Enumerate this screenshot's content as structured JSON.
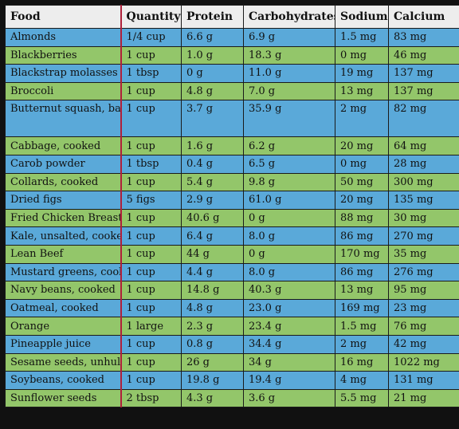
{
  "table": {
    "headers": [
      "Food",
      "Quantity",
      "Protein",
      "Carbohydrates",
      "Sodium",
      "Calcium"
    ],
    "rows": [
      {
        "food": "Almonds",
        "quantity": "1/4 cup",
        "protein": "6.6 g",
        "carbohydrates": "6.9 g",
        "sodium": "1.5 mg",
        "calcium": "83 mg",
        "color": "blue"
      },
      {
        "food": "Blackberries",
        "quantity": "1 cup",
        "protein": "1.0 g",
        "carbohydrates": "18.3 g",
        "sodium": "0 mg",
        "calcium": "46 mg",
        "color": "green"
      },
      {
        "food": "Blackstrap molasses",
        "quantity": "1 tbsp",
        "protein": "0 g",
        "carbohydrates": "11.0 g",
        "sodium": "19 mg",
        "calcium": "137 mg",
        "color": "blue"
      },
      {
        "food": "Broccoli",
        "quantity": "1 cup",
        "protein": "4.8 g",
        "carbohydrates": "7.0 g",
        "sodium": " 13 mg",
        "calcium": "137 mg",
        "color": "green"
      },
      {
        "food": "Butternut squash, baked",
        "quantity": "1 cup",
        "protein": "3.7 g",
        "carbohydrates": "35.9 g",
        "sodium": "2 mg",
        "calcium": "82 mg",
        "color": "blue",
        "tall": true
      },
      {
        "food": "Cabbage, cooked",
        "quantity": "1 cup",
        "protein": "1.6 g",
        "carbohydrates": "6.2 g",
        "sodium": "20 mg",
        "calcium": "64 mg",
        "color": "green"
      },
      {
        "food": "Carob powder",
        "quantity": "1 tbsp",
        "protein": "0.4 g",
        "carbohydrates": "6.5 g",
        "sodium": "0 mg",
        "calcium": "28 mg",
        "color": "blue"
      },
      {
        "food": "Collards, cooked",
        "quantity": "1 cup",
        "protein": "5.4 g",
        "carbohydrates": "9.8 g",
        "sodium": "50 mg",
        "calcium": "300 mg",
        "color": "green"
      },
      {
        "food": "Dried figs",
        "quantity": "5 figs",
        "protein": "2.9 g",
        "carbohydrates": "61.0 g",
        "sodium": "20 mg",
        "calcium": "135 mg",
        "color": "blue"
      },
      {
        "food": "Fried Chicken Breast",
        "quantity": "1 cup",
        "protein": "40.6 g",
        "carbohydrates": "0 g",
        "sodium": "88 mg",
        "calcium": "30 mg",
        "color": "green"
      },
      {
        "food": "Kale, unsalted, cooked",
        "quantity": "1 cup",
        "protein": "6.4 g",
        "carbohydrates": "8.0 g",
        "sodium": "86 mg",
        "calcium": "270 mg",
        "color": "blue"
      },
      {
        "food": "Lean Beef",
        "quantity": "1 cup",
        "protein": "44 g",
        "carbohydrates": "0 g",
        "sodium": "170  mg",
        "calcium": "35 mg",
        "color": "green"
      },
      {
        "food": "Mustard greens, cooked",
        "quantity": "1 cup",
        "protein": "4.4 g",
        "carbohydrates": "8.0 g",
        "sodium": "86 mg",
        "calcium": "276 mg",
        "color": "blue"
      },
      {
        "food": "Navy beans, cooked",
        "quantity": "1 cup",
        "protein": "14.8 g",
        "carbohydrates": "40.3 g",
        "sodium": "13 mg",
        "calcium": "95 mg",
        "color": "green"
      },
      {
        "food": "Oatmeal, cooked",
        "quantity": "1 cup",
        "protein": "4.8 g",
        "carbohydrates": "23.0 g",
        "sodium": "169 mg",
        "calcium": "23 mg",
        "color": "blue"
      },
      {
        "food": "Orange",
        "quantity": "1 large",
        "protein": "2.3 g",
        "carbohydrates": "23.4 g",
        "sodium": "1.5 mg",
        "calcium": "76 mg",
        "color": "green"
      },
      {
        "food": "Pineapple juice",
        "quantity": "1 cup",
        "protein": "0.8 g",
        "carbohydrates": "34.4 g",
        "sodium": "2 mg",
        "calcium": "42 mg",
        "color": "blue"
      },
      {
        "food": "Sesame seeds, unhulled",
        "quantity": "1 cup",
        "protein": "26 g",
        "carbohydrates": "34 g",
        "sodium": "16 mg",
        "calcium": "1022 mg",
        "color": "green"
      },
      {
        "food": "Soybeans, cooked",
        "quantity": "1 cup",
        "protein": "19.8 g",
        "carbohydrates": "19.4 g",
        "sodium": "4 mg",
        "calcium": "131 mg",
        "color": "blue"
      },
      {
        "food": "Sunflower seeds",
        "quantity": "2 tbsp",
        "protein": "4.3  g",
        "carbohydrates": "3.6  g",
        "sodium": "5.5 mg",
        "calcium": "21 mg",
        "color": "green"
      }
    ]
  },
  "colors": {
    "blue_row": "#5aa9d9",
    "green_row": "#93c66a",
    "header_bg": "#ededed",
    "quantity_divider": "#b0203a"
  }
}
